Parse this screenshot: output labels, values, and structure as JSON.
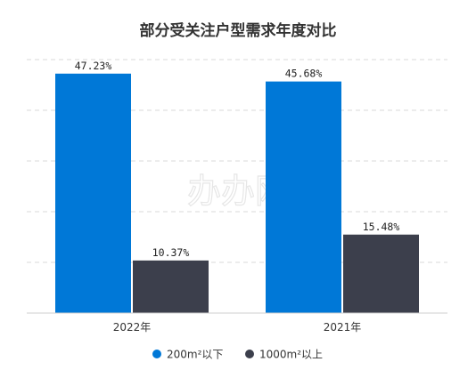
{
  "chart_data": {
    "type": "bar",
    "title": "部分受关注户型需求年度对比",
    "categories": [
      "2022年",
      "2021年"
    ],
    "series": [
      {
        "name": "200m²以下",
        "color": "#0078d7",
        "values": [
          47.23,
          45.68
        ],
        "labels": [
          "47.23%",
          "45.68%"
        ]
      },
      {
        "name": "1000m²以上",
        "color": "#3c3f4c",
        "values": [
          10.37,
          15.48
        ],
        "labels": [
          "10.37%",
          "15.48%"
        ]
      }
    ],
    "ylim": [
      0,
      50
    ],
    "grid": true,
    "legend_position": "bottom",
    "watermark": "办办网"
  }
}
